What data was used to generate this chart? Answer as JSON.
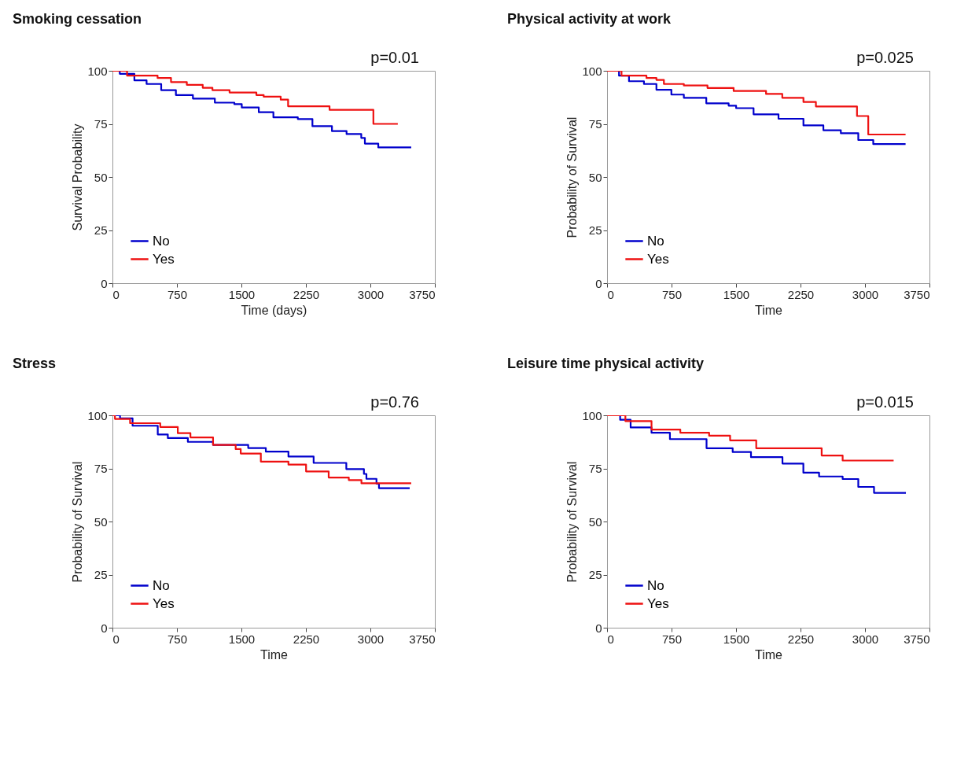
{
  "chart_data": [
    {
      "type": "step",
      "title": "Smoking cessation",
      "xlabel": "Time (days)",
      "ylabel": "Survival Probability",
      "annotations": [
        "p=0.01"
      ],
      "xlim": [
        0,
        3750
      ],
      "xticks": [
        0,
        750,
        1500,
        2250,
        3000,
        3750
      ],
      "ylim": [
        0,
        100
      ],
      "yticks": [
        0,
        25,
        50,
        75,
        100
      ],
      "legend": "bottom left",
      "series": [
        {
          "name": "No",
          "color": "#0000cc",
          "x": [
            0,
            85,
            255,
            397,
            567,
            738,
            936,
            1191,
            1418,
            1504,
            1702,
            1872,
            2156,
            2326,
            2553,
            2723,
            2894,
            2936,
            3092,
            3475
          ],
          "values": [
            100,
            98.6,
            95.5,
            93.8,
            90.9,
            88.6,
            86.9,
            85,
            84.3,
            82.7,
            80.5,
            78.1,
            77.3,
            73.9,
            71.6,
            70.2,
            68.4,
            65.7,
            63.9,
            63.9
          ]
        },
        {
          "name": "Yes",
          "color": "#ee1111",
          "x": [
            0,
            170,
            525,
            681,
            865,
            1050,
            1163,
            1362,
            1674,
            1759,
            1957,
            2043,
            2525,
            3035,
            3319
          ],
          "values": [
            100,
            97.7,
            96.6,
            94.7,
            93.4,
            92,
            90.9,
            89.8,
            88.6,
            87.8,
            86.4,
            83.3,
            81.6,
            75,
            75
          ]
        }
      ]
    },
    {
      "type": "step",
      "title": "Physical activity at work",
      "xlabel": "Time",
      "ylabel": "Probability of Survival",
      "annotations": [
        "p=0.025"
      ],
      "xlim": [
        0,
        3750
      ],
      "xticks": [
        0,
        750,
        1500,
        2250,
        3000,
        3750
      ],
      "ylim": [
        0,
        100
      ],
      "yticks": [
        0,
        25,
        50,
        75,
        100
      ],
      "legend": "bottom left",
      "series": [
        {
          "name": "No",
          "color": "#0000cc",
          "x": [
            0,
            139,
            255,
            429,
            574,
            748,
            893,
            1154,
            1414,
            1501,
            1704,
            1994,
            2284,
            2516,
            2719,
            2922,
            3096,
            3472
          ],
          "values": [
            100,
            97.7,
            95.1,
            93.8,
            91.1,
            88.8,
            87.3,
            84.7,
            83.6,
            82.4,
            79.5,
            77.4,
            74.3,
            72,
            70.6,
            67.4,
            65.5,
            65.5
          ]
        },
        {
          "name": "Yes",
          "color": "#ee1111",
          "x": [
            0,
            168,
            458,
            574,
            661,
            893,
            1168,
            1472,
            1849,
            2038,
            2284,
            2429,
            2907,
            3038,
            3472
          ],
          "values": [
            100,
            97.7,
            96.6,
            95.7,
            93.8,
            93.1,
            91.9,
            90.5,
            89.1,
            87.3,
            85.3,
            83.2,
            78.7,
            70,
            70
          ]
        }
      ]
    },
    {
      "type": "step",
      "title": "Stress",
      "xlabel": "Time",
      "ylabel": "Probability of Survival",
      "annotations": [
        "p=0.76"
      ],
      "xlim": [
        0,
        3750
      ],
      "xticks": [
        0,
        750,
        1500,
        2250,
        3000,
        3750
      ],
      "ylim": [
        0,
        100
      ],
      "yticks": [
        0,
        25,
        50,
        75,
        100
      ],
      "legend": "bottom left",
      "series": [
        {
          "name": "No",
          "color": "#0000cc",
          "x": [
            0,
            88,
            234,
            527,
            644,
            877,
            1170,
            1579,
            1784,
            2047,
            2340,
            2720,
            2925,
            2954,
            3071,
            3100,
            3457
          ],
          "values": [
            100,
            98.6,
            95.1,
            91,
            89.3,
            87.5,
            86.1,
            84.6,
            82.9,
            80.6,
            77.6,
            74.7,
            72.4,
            70.1,
            67.8,
            65.7,
            65.7
          ]
        },
        {
          "name": "Yes",
          "color": "#ee1111",
          "x": [
            0,
            29,
            205,
            556,
            760,
            907,
            1170,
            1433,
            1492,
            1726,
            2047,
            2252,
            2515,
            2749,
            2896,
            3475
          ],
          "values": [
            100,
            98.3,
            96.3,
            94.5,
            91.6,
            89.6,
            86.1,
            84.1,
            82,
            78.2,
            76.8,
            73.6,
            70.7,
            69.5,
            68,
            68
          ]
        }
      ]
    },
    {
      "type": "step",
      "title": "Leisure time physical activity",
      "xlabel": "Time",
      "ylabel": "Probability of Survival",
      "annotations": [
        "p=0.015"
      ],
      "xlim": [
        0,
        3750
      ],
      "xticks": [
        0,
        750,
        1500,
        2250,
        3000,
        3750
      ],
      "ylim": [
        0,
        100
      ],
      "yticks": [
        0,
        25,
        50,
        75,
        100
      ],
      "legend": "bottom left",
      "series": [
        {
          "name": "No",
          "color": "#0000cc",
          "x": [
            0,
            152,
            274,
            517,
            731,
            1157,
            1461,
            1674,
            2040,
            2283,
            2466,
            2740,
            2922,
            3105,
            3476
          ],
          "values": [
            100,
            97.9,
            94.3,
            91.8,
            88.8,
            84.5,
            82.7,
            80.3,
            77.3,
            73,
            71.2,
            70,
            66.3,
            63.5,
            63.5
          ]
        },
        {
          "name": "Yes",
          "color": "#ee1111",
          "x": [
            0,
            213,
            517,
            852,
            1187,
            1431,
            1735,
            2496,
            2740,
            3333
          ],
          "values": [
            100,
            97.3,
            93.3,
            91.8,
            90.4,
            88.2,
            84.5,
            81.1,
            78.7,
            78.7
          ]
        }
      ]
    }
  ]
}
